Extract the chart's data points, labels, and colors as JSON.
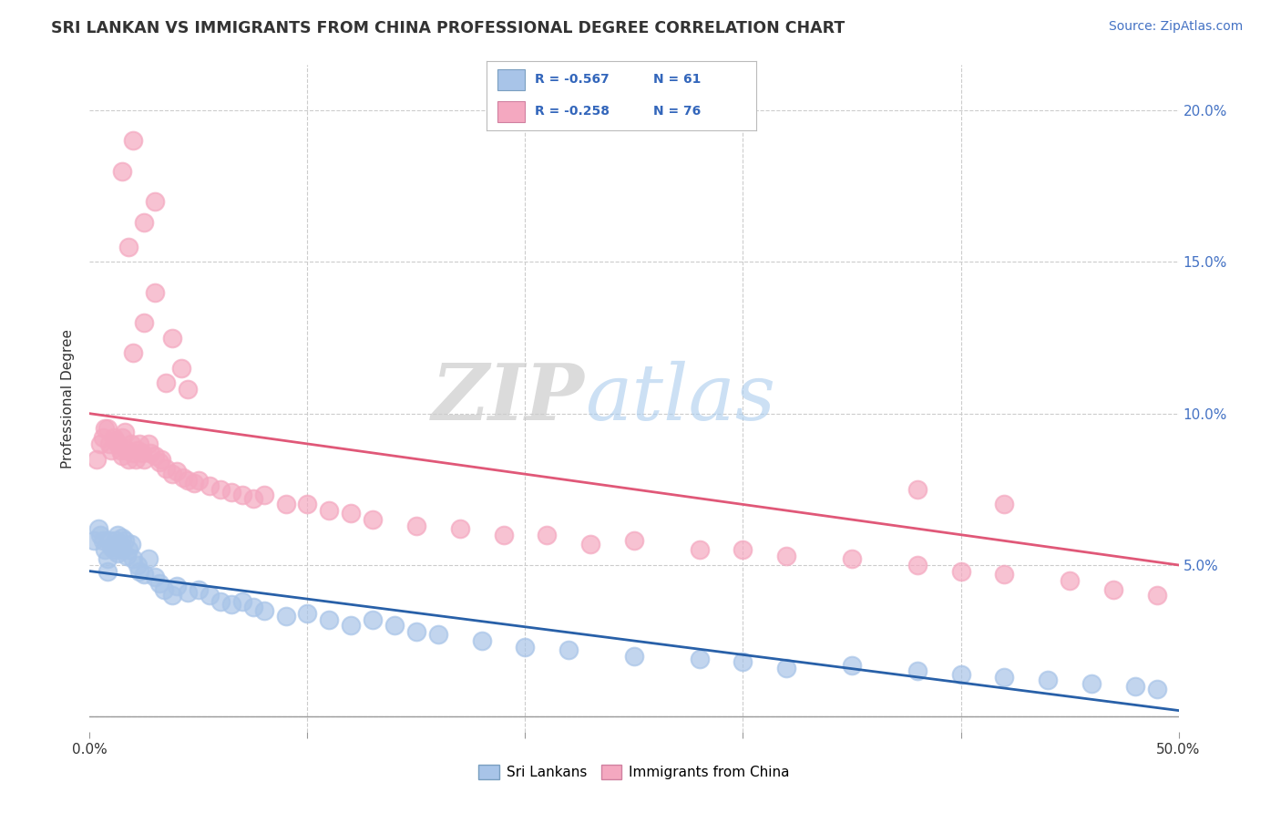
{
  "title": "SRI LANKAN VS IMMIGRANTS FROM CHINA PROFESSIONAL DEGREE CORRELATION CHART",
  "source": "Source: ZipAtlas.com",
  "ylabel": "Professional Degree",
  "xlim": [
    0.0,
    0.5
  ],
  "ylim": [
    -0.005,
    0.215
  ],
  "xticks": [
    0.0,
    0.1,
    0.2,
    0.3,
    0.4,
    0.5
  ],
  "xticklabels": [
    "0.0%",
    "",
    "",
    "",
    "",
    "50.0%"
  ],
  "yticks": [
    0.0,
    0.05,
    0.1,
    0.15,
    0.2
  ],
  "yticklabels_right": [
    "",
    "5.0%",
    "10.0%",
    "15.0%",
    "20.0%"
  ],
  "sri_lanka_color": "#a8c4e8",
  "china_color": "#f4a8c0",
  "sri_lanka_line_color": "#2860a8",
  "china_line_color": "#e05878",
  "watermark_zip": "ZIP",
  "watermark_atlas": "atlas",
  "legend_R_sri": "-0.567",
  "legend_N_sri": "61",
  "legend_R_china": "-0.258",
  "legend_N_china": "76",
  "sri_line_start_y": 0.048,
  "sri_line_end_y": 0.002,
  "china_line_start_y": 0.1,
  "china_line_end_y": 0.05,
  "sri_x": [
    0.002,
    0.004,
    0.005,
    0.006,
    0.007,
    0.008,
    0.009,
    0.01,
    0.011,
    0.012,
    0.013,
    0.013,
    0.014,
    0.015,
    0.015,
    0.016,
    0.017,
    0.018,
    0.019,
    0.02,
    0.022,
    0.023,
    0.025,
    0.027,
    0.03,
    0.032,
    0.034,
    0.038,
    0.04,
    0.045,
    0.05,
    0.055,
    0.06,
    0.065,
    0.07,
    0.075,
    0.08,
    0.09,
    0.1,
    0.11,
    0.12,
    0.13,
    0.14,
    0.15,
    0.16,
    0.18,
    0.2,
    0.22,
    0.25,
    0.28,
    0.3,
    0.32,
    0.35,
    0.38,
    0.4,
    0.42,
    0.44,
    0.46,
    0.48,
    0.49,
    0.008
  ],
  "sri_y": [
    0.058,
    0.062,
    0.06,
    0.058,
    0.055,
    0.052,
    0.058,
    0.056,
    0.055,
    0.058,
    0.06,
    0.054,
    0.057,
    0.059,
    0.055,
    0.058,
    0.053,
    0.055,
    0.057,
    0.052,
    0.05,
    0.048,
    0.047,
    0.052,
    0.046,
    0.044,
    0.042,
    0.04,
    0.043,
    0.041,
    0.042,
    0.04,
    0.038,
    0.037,
    0.038,
    0.036,
    0.035,
    0.033,
    0.034,
    0.032,
    0.03,
    0.032,
    0.03,
    0.028,
    0.027,
    0.025,
    0.023,
    0.022,
    0.02,
    0.019,
    0.018,
    0.016,
    0.017,
    0.015,
    0.014,
    0.013,
    0.012,
    0.011,
    0.01,
    0.009,
    0.048
  ],
  "china_x": [
    0.003,
    0.005,
    0.006,
    0.007,
    0.008,
    0.009,
    0.01,
    0.011,
    0.012,
    0.013,
    0.014,
    0.015,
    0.015,
    0.016,
    0.017,
    0.018,
    0.019,
    0.02,
    0.021,
    0.022,
    0.023,
    0.024,
    0.025,
    0.027,
    0.028,
    0.03,
    0.032,
    0.033,
    0.035,
    0.038,
    0.04,
    0.043,
    0.045,
    0.048,
    0.05,
    0.055,
    0.06,
    0.065,
    0.07,
    0.075,
    0.08,
    0.09,
    0.1,
    0.11,
    0.12,
    0.13,
    0.15,
    0.17,
    0.19,
    0.21,
    0.23,
    0.25,
    0.28,
    0.3,
    0.32,
    0.35,
    0.38,
    0.4,
    0.42,
    0.45,
    0.47,
    0.49,
    0.02,
    0.025,
    0.03,
    0.035,
    0.038,
    0.042,
    0.045,
    0.018,
    0.025,
    0.03,
    0.015,
    0.02,
    0.38,
    0.42
  ],
  "china_y": [
    0.085,
    0.09,
    0.092,
    0.095,
    0.095,
    0.09,
    0.088,
    0.092,
    0.091,
    0.09,
    0.088,
    0.092,
    0.086,
    0.094,
    0.088,
    0.085,
    0.09,
    0.087,
    0.085,
    0.088,
    0.09,
    0.087,
    0.085,
    0.09,
    0.087,
    0.086,
    0.084,
    0.085,
    0.082,
    0.08,
    0.081,
    0.079,
    0.078,
    0.077,
    0.078,
    0.076,
    0.075,
    0.074,
    0.073,
    0.072,
    0.073,
    0.07,
    0.07,
    0.068,
    0.067,
    0.065,
    0.063,
    0.062,
    0.06,
    0.06,
    0.057,
    0.058,
    0.055,
    0.055,
    0.053,
    0.052,
    0.05,
    0.048,
    0.047,
    0.045,
    0.042,
    0.04,
    0.12,
    0.13,
    0.14,
    0.11,
    0.125,
    0.115,
    0.108,
    0.155,
    0.163,
    0.17,
    0.18,
    0.19,
    0.075,
    0.07
  ]
}
